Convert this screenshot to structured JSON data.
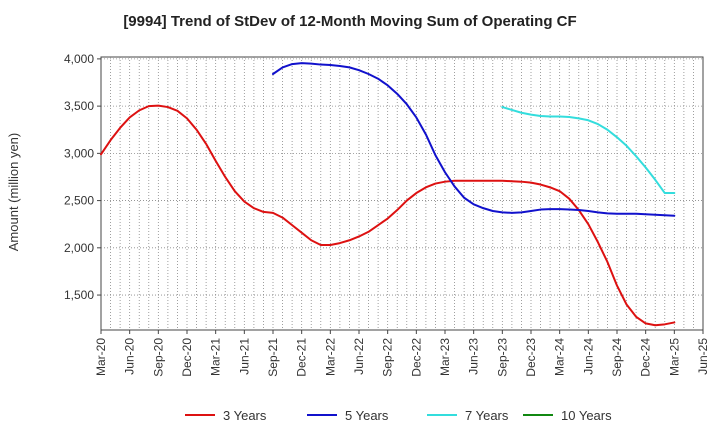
{
  "chart_data": {
    "type": "line",
    "title": "[9994]  Trend of StDev of 12-Month Moving Sum of Operating CF",
    "xlabel": "",
    "ylabel": "Amount (million yen)",
    "x_ticks": [
      "Mar-20",
      "Jun-20",
      "Sep-20",
      "Dec-20",
      "Mar-21",
      "Jun-21",
      "Sep-21",
      "Dec-21",
      "Mar-22",
      "Jun-22",
      "Sep-22",
      "Dec-22",
      "Mar-23",
      "Jun-23",
      "Sep-23",
      "Dec-23",
      "Mar-24",
      "Jun-24",
      "Sep-24",
      "Dec-24",
      "Mar-25",
      "Jun-25"
    ],
    "y_ticks": [
      1500,
      2000,
      2500,
      3000,
      3500,
      4000
    ],
    "y_tick_labels": [
      "1,500",
      "2,000",
      "2,500",
      "3,000",
      "3,500",
      "4,000"
    ],
    "ylim": [
      1130,
      4020
    ],
    "grid": true,
    "legend_position": "bottom",
    "series": [
      {
        "name": "3 Years",
        "color": "#dd1111",
        "x": [
          "2020-03",
          "2020-04",
          "2020-05",
          "2020-06",
          "2020-07",
          "2020-08",
          "2020-09",
          "2020-10",
          "2020-11",
          "2020-12",
          "2021-01",
          "2021-02",
          "2021-03",
          "2021-04",
          "2021-05",
          "2021-06",
          "2021-07",
          "2021-08",
          "2021-09",
          "2021-10",
          "2021-11",
          "2021-12",
          "2022-01",
          "2022-02",
          "2022-03",
          "2022-04",
          "2022-05",
          "2022-06",
          "2022-07",
          "2022-08",
          "2022-09",
          "2022-10",
          "2022-11",
          "2022-12",
          "2023-01",
          "2023-02",
          "2023-03",
          "2023-04",
          "2023-05",
          "2023-06",
          "2023-07",
          "2023-08",
          "2023-09",
          "2023-10",
          "2023-11",
          "2023-12",
          "2024-01",
          "2024-02",
          "2024-03",
          "2024-04",
          "2024-05",
          "2024-06",
          "2024-07",
          "2024-08",
          "2024-09",
          "2024-10",
          "2024-11",
          "2024-12",
          "2025-01",
          "2025-02",
          "2025-03"
        ],
        "values": [
          2990,
          3140,
          3270,
          3380,
          3455,
          3500,
          3505,
          3490,
          3450,
          3370,
          3250,
          3100,
          2920,
          2750,
          2600,
          2490,
          2420,
          2380,
          2370,
          2320,
          2240,
          2160,
          2080,
          2030,
          2030,
          2050,
          2080,
          2120,
          2170,
          2240,
          2310,
          2400,
          2500,
          2580,
          2640,
          2680,
          2700,
          2710,
          2710,
          2710,
          2710,
          2710,
          2710,
          2705,
          2700,
          2690,
          2670,
          2640,
          2600,
          2520,
          2400,
          2250,
          2060,
          1850,
          1600,
          1400,
          1270,
          1200,
          1180,
          1190,
          1210
        ]
      },
      {
        "name": "5 Years",
        "color": "#1111cc",
        "x": [
          "2021-09",
          "2021-10",
          "2021-11",
          "2021-12",
          "2022-01",
          "2022-02",
          "2022-03",
          "2022-04",
          "2022-05",
          "2022-06",
          "2022-07",
          "2022-08",
          "2022-09",
          "2022-10",
          "2022-11",
          "2022-12",
          "2023-01",
          "2023-02",
          "2023-03",
          "2023-04",
          "2023-05",
          "2023-06",
          "2023-07",
          "2023-08",
          "2023-09",
          "2023-10",
          "2023-11",
          "2023-12",
          "2024-01",
          "2024-02",
          "2024-03",
          "2024-04",
          "2024-05",
          "2024-06",
          "2024-07",
          "2024-08",
          "2024-09",
          "2024-10",
          "2024-11",
          "2024-12",
          "2025-01",
          "2025-02",
          "2025-03"
        ],
        "values": [
          3840,
          3910,
          3945,
          3955,
          3950,
          3940,
          3935,
          3925,
          3910,
          3880,
          3840,
          3790,
          3720,
          3630,
          3520,
          3380,
          3200,
          2980,
          2800,
          2650,
          2530,
          2460,
          2420,
          2390,
          2375,
          2370,
          2375,
          2390,
          2405,
          2410,
          2410,
          2405,
          2400,
          2390,
          2375,
          2365,
          2360,
          2360,
          2360,
          2355,
          2350,
          2345,
          2340
        ]
      },
      {
        "name": "7 Years",
        "color": "#33dddd",
        "x": [
          "2023-09",
          "2023-10",
          "2023-11",
          "2023-12",
          "2024-01",
          "2024-02",
          "2024-03",
          "2024-04",
          "2024-05",
          "2024-06",
          "2024-07",
          "2024-08",
          "2024-09",
          "2024-10",
          "2024-11",
          "2024-12",
          "2025-01",
          "2025-02",
          "2025-03"
        ],
        "values": [
          3490,
          3460,
          3430,
          3410,
          3395,
          3390,
          3390,
          3385,
          3370,
          3350,
          3310,
          3250,
          3170,
          3080,
          2970,
          2850,
          2720,
          2580,
          2580
        ]
      },
      {
        "name": "10 Years",
        "color": "#118811",
        "x": [],
        "values": []
      }
    ]
  }
}
